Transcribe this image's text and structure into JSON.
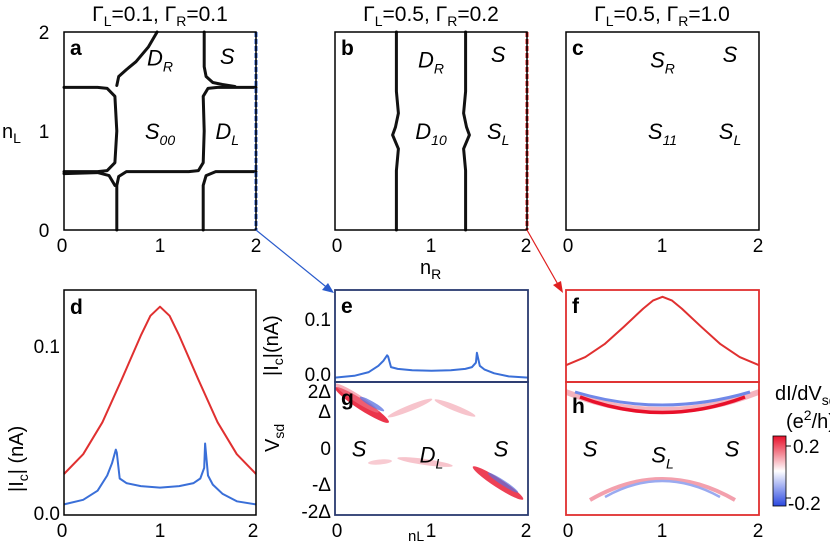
{
  "chart_data": [
    {
      "panel": "a",
      "type": "line",
      "title_parts": [
        "Γ",
        "L",
        "=0.1, Γ",
        "R",
        "=0.1"
      ],
      "ylabel_parts": [
        "n",
        "L"
      ],
      "xticks": [
        "0",
        "1",
        "2"
      ],
      "yticks": [
        "0",
        "1",
        "2"
      ],
      "xlim": [
        0,
        2
      ],
      "ylim": [
        0,
        2
      ],
      "regions": [
        {
          "text": "D",
          "sub": "R",
          "x": 1.0,
          "y": 1.74
        },
        {
          "text": "S",
          "sub": "",
          "x": 1.7,
          "y": 1.76
        },
        {
          "text": "S",
          "sub": "00",
          "x": 1.0,
          "y": 1.0
        },
        {
          "text": "D",
          "sub": "L",
          "x": 1.7,
          "y": 1.0
        }
      ],
      "boundaries": [
        [
          [
            0.0,
            1.44
          ],
          [
            0.35,
            1.44
          ],
          [
            0.45,
            1.43
          ],
          [
            0.53,
            1.35
          ],
          [
            0.55,
            1.0
          ],
          [
            0.53,
            0.68
          ],
          [
            0.45,
            0.6
          ],
          [
            0.35,
            0.59
          ],
          [
            0.0,
            0.59
          ]
        ],
        [
          [
            0.55,
            0.0
          ],
          [
            0.55,
            0.45
          ],
          [
            0.57,
            0.54
          ],
          [
            0.65,
            0.59
          ],
          [
            1.3,
            0.59
          ],
          [
            1.4,
            0.6
          ],
          [
            1.45,
            0.68
          ],
          [
            1.46,
            1.0
          ],
          [
            1.45,
            1.35
          ],
          [
            1.5,
            1.43
          ],
          [
            1.6,
            1.44
          ],
          [
            2.0,
            1.44
          ]
        ],
        [
          [
            0.0,
            0.57
          ],
          [
            0.35,
            0.58
          ],
          [
            0.47,
            0.55
          ],
          [
            0.53,
            0.45
          ]
        ],
        [
          [
            0.55,
            1.46
          ],
          [
            0.57,
            1.55
          ],
          [
            0.65,
            1.62
          ],
          [
            0.75,
            1.7
          ],
          [
            0.88,
            1.85
          ],
          [
            0.97,
            2.0
          ]
        ],
        [
          [
            1.46,
            2.0
          ],
          [
            1.46,
            1.65
          ],
          [
            1.48,
            1.55
          ],
          [
            1.55,
            1.49
          ],
          [
            1.65,
            1.47
          ],
          [
            1.78,
            1.45
          ]
        ],
        [
          [
            1.45,
            0.0
          ],
          [
            1.45,
            0.45
          ],
          [
            1.48,
            0.55
          ],
          [
            1.58,
            0.59
          ],
          [
            2.0,
            0.59
          ]
        ]
      ],
      "cut": {
        "x": 2.0,
        "color": "#2b5ccc"
      }
    },
    {
      "panel": "b",
      "type": "line",
      "title_parts": [
        "Γ",
        "L",
        "=0.5, Γ",
        "R",
        "=0.2"
      ],
      "xlabel_parts": [
        "n",
        "R"
      ],
      "xticks": [
        "0",
        "1",
        "2"
      ],
      "xlim": [
        0,
        2
      ],
      "ylim": [
        0,
        2
      ],
      "regions": [
        {
          "text": "D",
          "sub": "R",
          "x": 1.0,
          "y": 1.72
        },
        {
          "text": "S",
          "sub": "",
          "x": 1.7,
          "y": 1.78
        },
        {
          "text": "D",
          "sub": "10",
          "x": 1.0,
          "y": 1.0
        },
        {
          "text": "S",
          "sub": "L",
          "x": 1.7,
          "y": 1.0
        }
      ],
      "boundaries": [
        [
          [
            0.64,
            0.0
          ],
          [
            0.64,
            0.6
          ],
          [
            0.66,
            0.82
          ],
          [
            0.6,
            0.96
          ],
          [
            0.63,
            1.04
          ],
          [
            0.66,
            1.18
          ],
          [
            0.64,
            1.4
          ],
          [
            0.64,
            2.0
          ]
        ],
        [
          [
            1.36,
            0.0
          ],
          [
            1.36,
            0.6
          ],
          [
            1.34,
            0.82
          ],
          [
            1.4,
            0.96
          ],
          [
            1.37,
            1.04
          ],
          [
            1.34,
            1.18
          ],
          [
            1.36,
            1.4
          ],
          [
            1.36,
            2.0
          ]
        ]
      ],
      "cut": {
        "x": 2.0,
        "color": "#e02020"
      }
    },
    {
      "panel": "c",
      "type": "line",
      "title_parts": [
        "Γ",
        "L",
        "=0.5, Γ",
        "R",
        "=1.0"
      ],
      "xticks": [
        "0",
        "1",
        "2"
      ],
      "xlim": [
        0,
        2
      ],
      "ylim": [
        0,
        2
      ],
      "regions": [
        {
          "text": "S",
          "sub": "R",
          "x": 1.0,
          "y": 1.72
        },
        {
          "text": "S",
          "sub": "",
          "x": 1.7,
          "y": 1.78
        },
        {
          "text": "S",
          "sub": "11",
          "x": 1.0,
          "y": 1.0
        },
        {
          "text": "S",
          "sub": "L",
          "x": 1.7,
          "y": 1.0
        }
      ]
    },
    {
      "panel": "d",
      "type": "line",
      "ylabel": "|I_c| (nA)",
      "ylabel_parts": [
        "|I",
        "c",
        "| (nA)"
      ],
      "xticks": [
        "0",
        "1",
        "2"
      ],
      "yticks": [
        "0.0",
        "0.1"
      ],
      "xlim": [
        0,
        2
      ],
      "ylim": [
        -0.003,
        0.145
      ],
      "series": [
        {
          "name": "red",
          "color": "#e03030",
          "x": [
            0,
            0.2,
            0.4,
            0.6,
            0.8,
            0.9,
            1.0,
            1.1,
            1.2,
            1.4,
            1.6,
            1.8,
            2.0
          ],
          "values": [
            0.024,
            0.037,
            0.058,
            0.086,
            0.115,
            0.128,
            0.134,
            0.128,
            0.115,
            0.086,
            0.058,
            0.037,
            0.024
          ]
        },
        {
          "name": "blue",
          "color": "#3a6fd8",
          "x": [
            0,
            0.2,
            0.35,
            0.45,
            0.5,
            0.54,
            0.55,
            0.58,
            0.65,
            0.8,
            1.0,
            1.2,
            1.35,
            1.42,
            1.46,
            1.47,
            1.5,
            1.55,
            1.65,
            1.8,
            2.0
          ],
          "values": [
            0.004,
            0.007,
            0.013,
            0.023,
            0.031,
            0.04,
            0.038,
            0.021,
            0.018,
            0.016,
            0.015,
            0.016,
            0.018,
            0.021,
            0.028,
            0.044,
            0.023,
            0.017,
            0.011,
            0.006,
            0.004
          ]
        }
      ]
    },
    {
      "panel": "e",
      "type": "line",
      "ylabel_parts": [
        "|I",
        "c",
        "|(nA)"
      ],
      "yticks": [
        "0.0",
        "0.1"
      ],
      "xlim": [
        0,
        2
      ],
      "ylim": [
        -0.003,
        0.145
      ],
      "series": [
        {
          "name": "blue",
          "color": "#3a6fd8",
          "x": [
            0,
            0.2,
            0.35,
            0.45,
            0.5,
            0.54,
            0.55,
            0.58,
            0.65,
            0.8,
            1.0,
            1.2,
            1.35,
            1.42,
            1.46,
            1.47,
            1.5,
            1.55,
            1.65,
            1.8,
            2.0
          ],
          "values": [
            0.004,
            0.007,
            0.013,
            0.023,
            0.031,
            0.04,
            0.038,
            0.021,
            0.018,
            0.016,
            0.015,
            0.016,
            0.018,
            0.021,
            0.028,
            0.044,
            0.023,
            0.017,
            0.011,
            0.006,
            0.004
          ]
        }
      ]
    },
    {
      "panel": "f",
      "type": "line",
      "xlim": [
        0,
        2
      ],
      "ylim": [
        -0.003,
        0.145
      ],
      "series": [
        {
          "name": "red",
          "color": "#e03030",
          "x": [
            0,
            0.2,
            0.4,
            0.6,
            0.8,
            0.9,
            1.0,
            1.1,
            1.2,
            1.4,
            1.6,
            1.8,
            2.0
          ],
          "values": [
            0.024,
            0.037,
            0.058,
            0.086,
            0.115,
            0.128,
            0.134,
            0.128,
            0.115,
            0.086,
            0.058,
            0.037,
            0.024
          ]
        }
      ]
    },
    {
      "panel": "g",
      "type": "heatmap",
      "xlabel_parts": [
        "n",
        "L"
      ],
      "ylabel_parts": [
        "V",
        "sd"
      ],
      "xticks": [
        "0",
        "1",
        "2"
      ],
      "yticks": [
        "2Δ",
        "Δ",
        "0",
        "-Δ",
        "-2Δ"
      ],
      "xlim": [
        0,
        2
      ],
      "ylim": [
        -2.2,
        2.2
      ],
      "regions": [
        {
          "text": "S",
          "sub": "",
          "x": 0.25,
          "y": 0.0
        },
        {
          "text": "D",
          "sub": "L",
          "x": 1.0,
          "y": -0.2
        },
        {
          "text": "S",
          "sub": "",
          "x": 1.72,
          "y": 0.0
        }
      ]
    },
    {
      "panel": "h",
      "type": "heatmap",
      "xticks": [
        "0",
        "1",
        "2"
      ],
      "xlim": [
        0,
        2
      ],
      "ylim": [
        -2.2,
        2.2
      ],
      "regions": [
        {
          "text": "S",
          "sub": "",
          "x": 0.25,
          "y": 0.0
        },
        {
          "text": "S",
          "sub": "L",
          "x": 1.0,
          "y": -0.2
        },
        {
          "text": "S",
          "sub": "",
          "x": 1.72,
          "y": 0.0
        }
      ],
      "colorbar": {
        "title_parts": [
          "dI/dV",
          "sd"
        ],
        "unit_parts": [
          "(e",
          "2",
          "/h)"
        ],
        "ticks": [
          "0.2",
          "-0.2"
        ],
        "colors": [
          "#e8102a",
          "#ffffff",
          "#2a48e0"
        ]
      }
    }
  ]
}
